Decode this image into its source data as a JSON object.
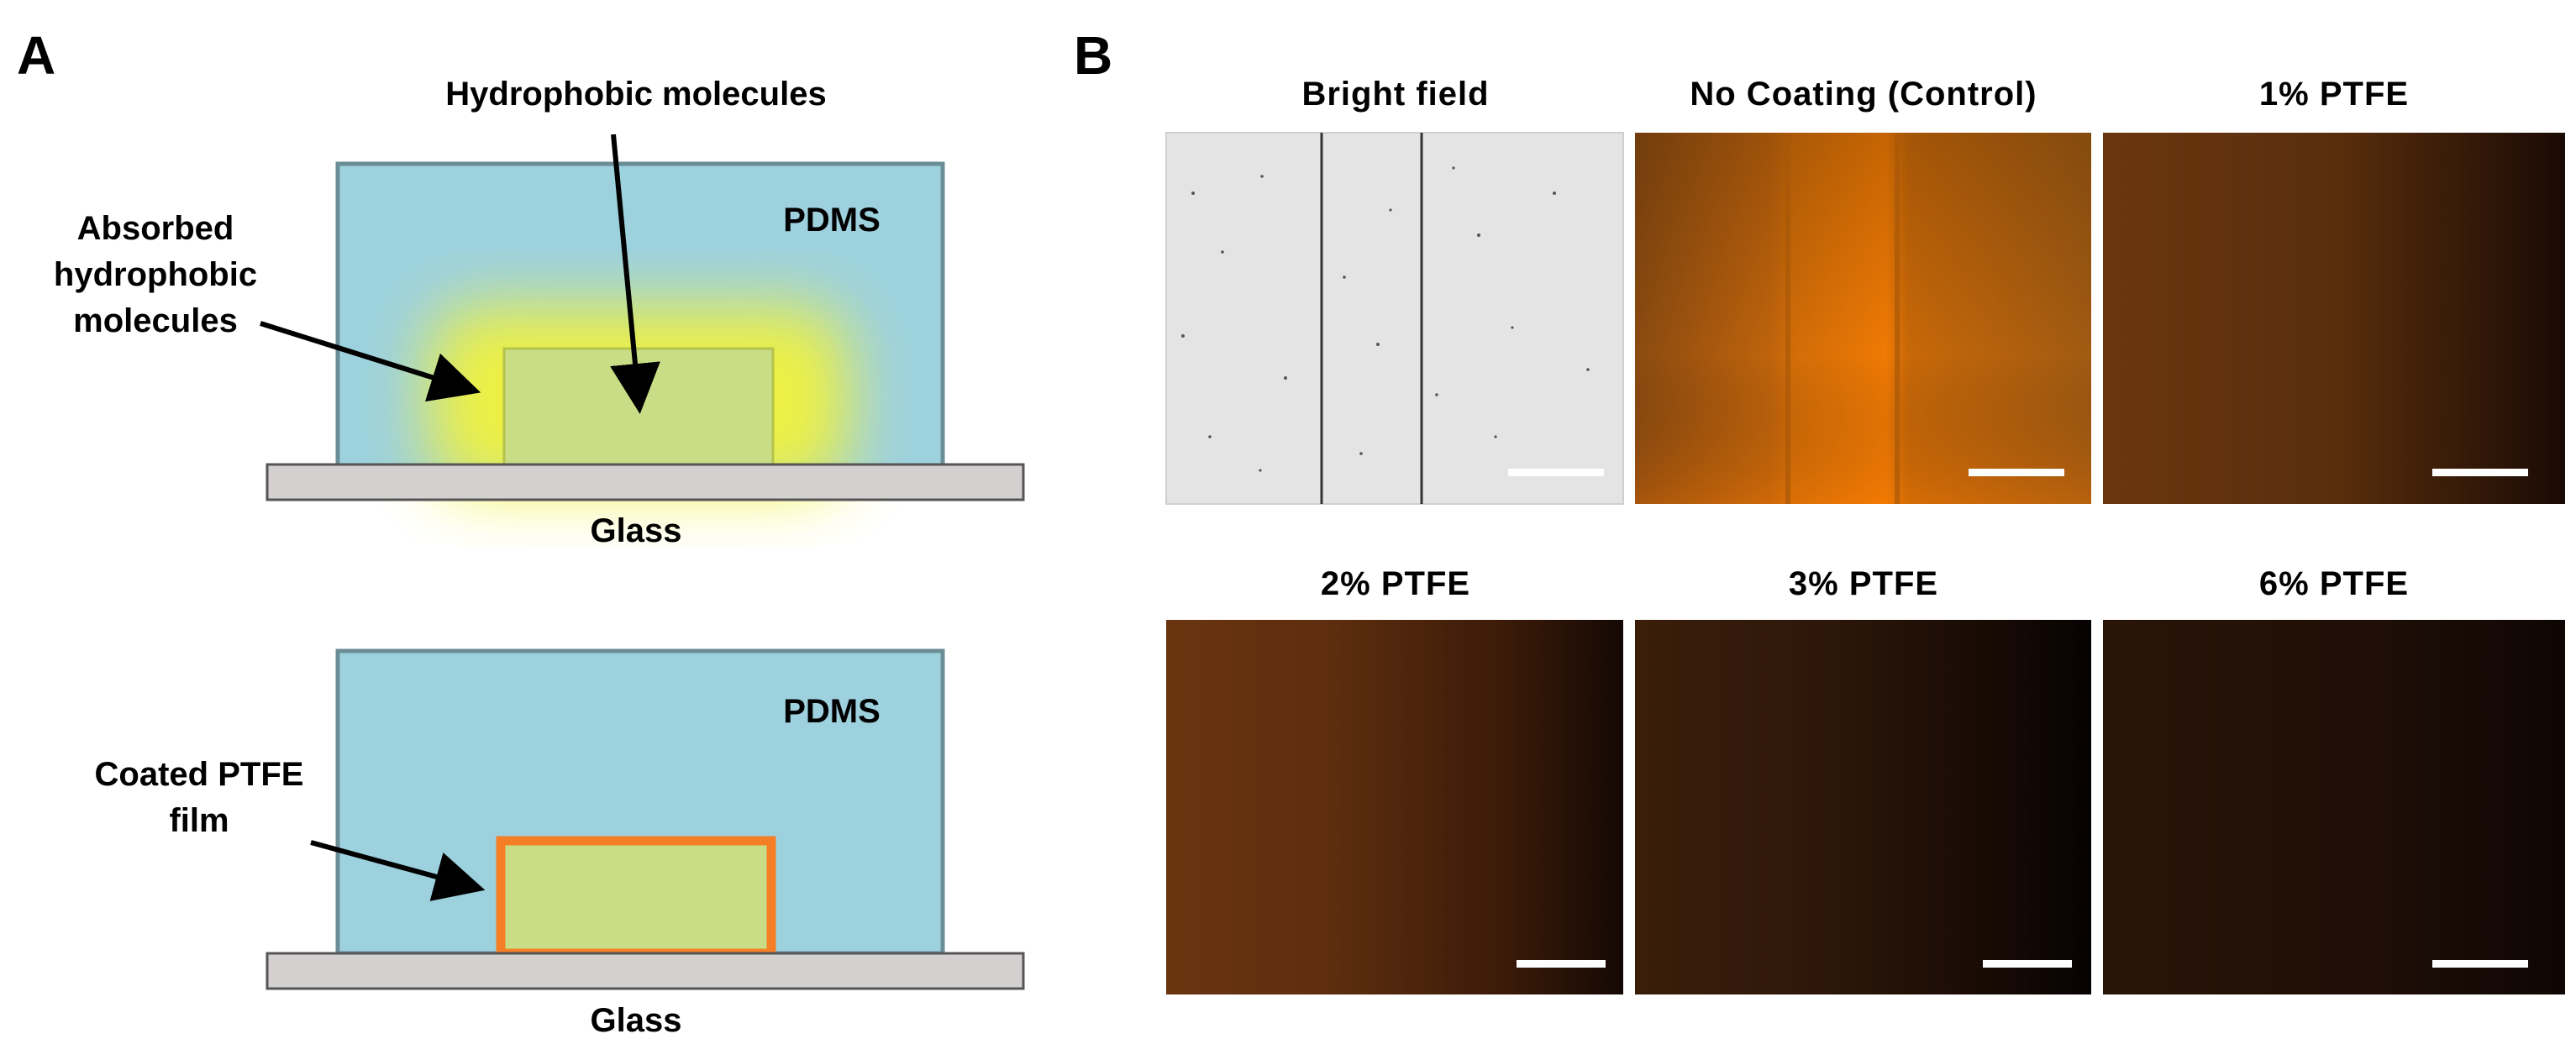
{
  "panel_a": {
    "letter": "A",
    "top": {
      "label_top": "Hydrophobic molecules",
      "label_left_lines": [
        "Absorbed",
        "hydrophobic",
        "molecules"
      ],
      "pdms_label": "PDMS",
      "glass_label": "Glass"
    },
    "bottom": {
      "label_left_lines": [
        "Coated PTFE",
        "film"
      ],
      "pdms_label": "PDMS",
      "glass_label": "Glass"
    },
    "colors": {
      "pdms": "#9dd1de",
      "pdms_border": "#6b8d96",
      "glass": "#d4d0d0",
      "channel": "#c8dd86",
      "glow": "#f2f23a",
      "ptfe_border": "#f47f26"
    }
  },
  "panel_b": {
    "letter": "B",
    "images": [
      {
        "title": "Bright field",
        "kind": "brightfield"
      },
      {
        "title": "No Coating (Control)",
        "kind": "control"
      },
      {
        "title": "1% PTFE",
        "kind": "ptfe1"
      },
      {
        "title": "2% PTFE",
        "kind": "ptfe2"
      },
      {
        "title": "3% PTFE",
        "kind": "ptfe3"
      },
      {
        "title": "6% PTFE",
        "kind": "ptfe6"
      }
    ]
  }
}
